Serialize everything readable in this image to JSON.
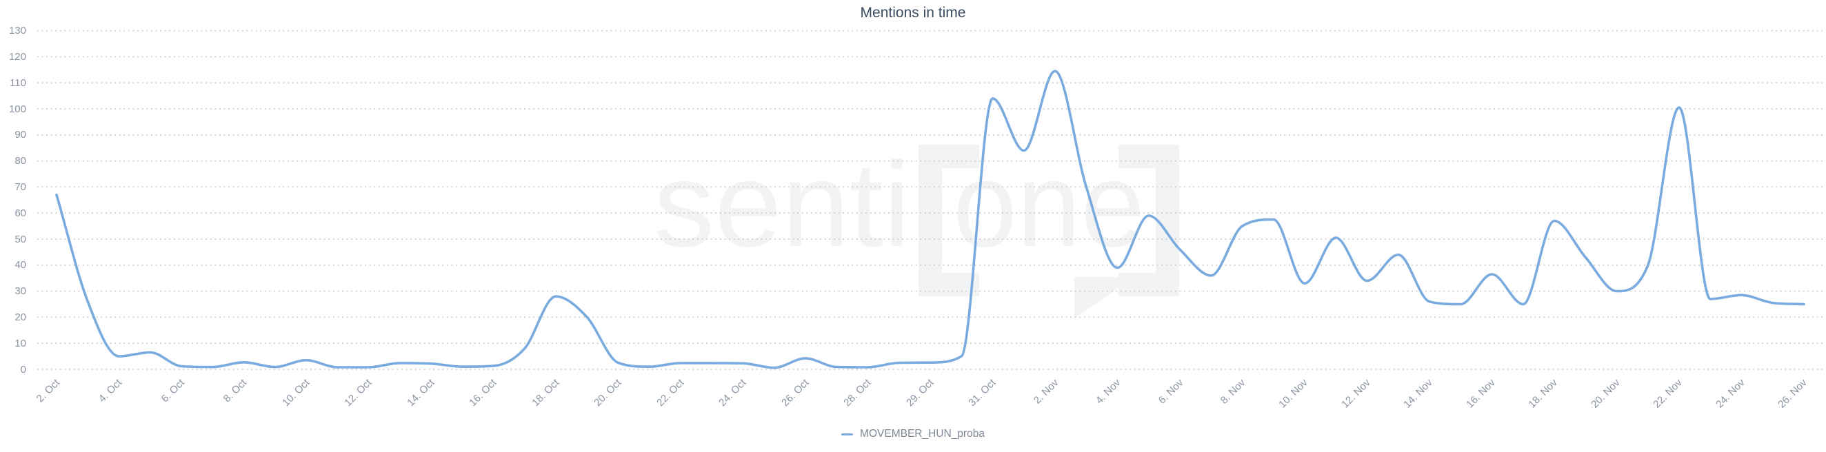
{
  "title": "Mentions in time",
  "legend": {
    "series_label": "MOVEMBER_HUN_proba"
  },
  "watermark": {
    "part1": "senti",
    "part2": "one"
  },
  "colors": {
    "line": "#7aabdf",
    "grid": "#c9c9c9",
    "axis_text": "#8b93a2",
    "title_text": "#3a4b61",
    "legend_text": "#7e8795",
    "watermark": "#f2f3f5"
  },
  "chart_data": {
    "type": "line",
    "title": "Mentions in time",
    "x_tick_labels": [
      "2. Oct",
      "4. Oct",
      "6. Oct",
      "8. Oct",
      "10. Oct",
      "12. Oct",
      "14. Oct",
      "16. Oct",
      "18. Oct",
      "20. Oct",
      "22. Oct",
      "24. Oct",
      "26. Oct",
      "28. Oct",
      "29. Oct",
      "31. Oct",
      "2. Nov",
      "4. Nov",
      "6. Nov",
      "8. Nov",
      "10. Nov",
      "12. Nov",
      "14. Nov",
      "16. Nov",
      "18. Nov",
      "20. Nov",
      "22. Nov",
      "24. Nov",
      "26. Nov"
    ],
    "x_label_every_n_points": 2,
    "y_ticks": [
      0,
      10,
      20,
      30,
      40,
      50,
      60,
      70,
      80,
      90,
      100,
      110,
      120,
      130
    ],
    "ylim": [
      0,
      130
    ],
    "grid": "dotted-horizontal",
    "legend_position": "bottom-center",
    "series": [
      {
        "name": "MOVEMBER_HUN_proba",
        "values": [
          67,
          26,
          5,
          6.5,
          1.2,
          0.9,
          2.7,
          0.9,
          3.5,
          0.8,
          0.8,
          2.4,
          2.2,
          1.0,
          1.3,
          8,
          28,
          20,
          2.5,
          1.0,
          2.4,
          2.4,
          2.3,
          0.6,
          4.2,
          0.9,
          0.8,
          2.5,
          2.6,
          5,
          104,
          84,
          114.5,
          70,
          39,
          59,
          46,
          36,
          55,
          57.5,
          33,
          50.5,
          34,
          44,
          26,
          25,
          36.5,
          25,
          57,
          43,
          30,
          40,
          100.5,
          27,
          28.5,
          25.5,
          25
        ]
      }
    ]
  }
}
